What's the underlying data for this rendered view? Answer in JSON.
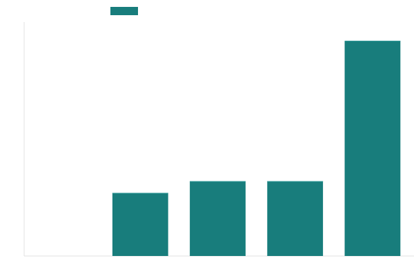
{
  "chart_data": {
    "type": "bar",
    "categories": [
      "",
      "",
      "",
      "",
      ""
    ],
    "values": [
      0,
      2.7,
      3.2,
      3.2,
      9.2
    ],
    "ylim": [
      0,
      10
    ],
    "grid": false,
    "legend": "top-left",
    "series": [
      {
        "values": [
          0,
          2.7,
          3.2,
          3.2,
          9.2
        ],
        "color": "#187d7c"
      }
    ],
    "colors": {
      "bar": "#187d7c",
      "axis": "#e0e0e0",
      "background": "#ffffff"
    }
  }
}
